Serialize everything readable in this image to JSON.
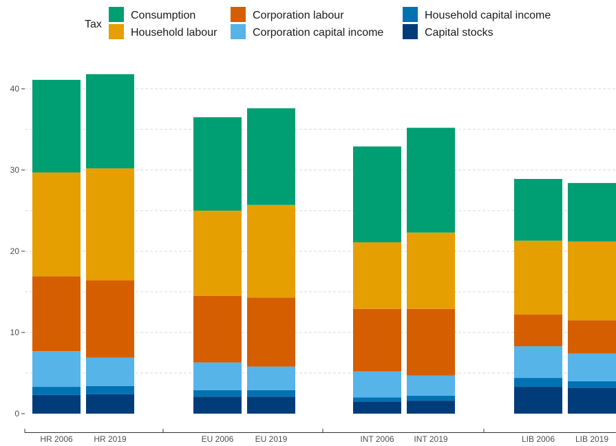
{
  "chart_data": {
    "type": "bar",
    "stacked": true,
    "legend_title": "Tax",
    "legend_position": "top",
    "categories": [
      "HR 2006",
      "HR 2019",
      "EU 2006",
      "EU 2019",
      "INT 2006",
      "INT 2019",
      "LIB 2006",
      "LIB 2019"
    ],
    "groups": [
      {
        "name": "HR",
        "categories": [
          "HR 2006",
          "HR 2019"
        ]
      },
      {
        "name": "EU",
        "categories": [
          "EU 2006",
          "EU 2019"
        ]
      },
      {
        "name": "INT",
        "categories": [
          "INT 2006",
          "INT 2019"
        ]
      },
      {
        "name": "LIB",
        "categories": [
          "LIB 2006",
          "LIB 2019"
        ]
      }
    ],
    "series": [
      {
        "name": "Capital stocks",
        "color": "#003C7A",
        "values": [
          2.3,
          2.4,
          2.1,
          2.1,
          1.5,
          1.6,
          3.3,
          3.2
        ]
      },
      {
        "name": "Household capital income",
        "color": "#0072B2",
        "values": [
          1.0,
          1.0,
          0.8,
          0.8,
          0.5,
          0.6,
          1.1,
          0.8
        ]
      },
      {
        "name": "Corporation capital income",
        "color": "#56B4E9",
        "values": [
          4.4,
          3.5,
          3.4,
          2.9,
          3.2,
          2.5,
          3.9,
          3.4
        ]
      },
      {
        "name": "Corporation labour",
        "color": "#D55E00",
        "values": [
          9.2,
          9.5,
          8.2,
          8.5,
          7.7,
          8.2,
          3.9,
          4.1
        ]
      },
      {
        "name": "Household labour",
        "color": "#E69F00",
        "values": [
          12.8,
          13.8,
          10.5,
          11.4,
          8.2,
          9.4,
          9.1,
          9.7
        ]
      },
      {
        "name": "Consumption",
        "color": "#009E73",
        "values": [
          11.4,
          11.6,
          11.5,
          11.9,
          11.8,
          12.9,
          7.6,
          7.2
        ]
      }
    ],
    "legend_order": [
      "Consumption",
      "Household labour",
      "Corporation labour",
      "Corporation capital income",
      "Household capital income",
      "Capital stocks"
    ],
    "y_ticks": [
      0,
      10,
      20,
      30,
      40
    ],
    "ylim": [
      0,
      42
    ],
    "grid": "horizontal dashed",
    "xlabel": "",
    "ylabel": ""
  }
}
